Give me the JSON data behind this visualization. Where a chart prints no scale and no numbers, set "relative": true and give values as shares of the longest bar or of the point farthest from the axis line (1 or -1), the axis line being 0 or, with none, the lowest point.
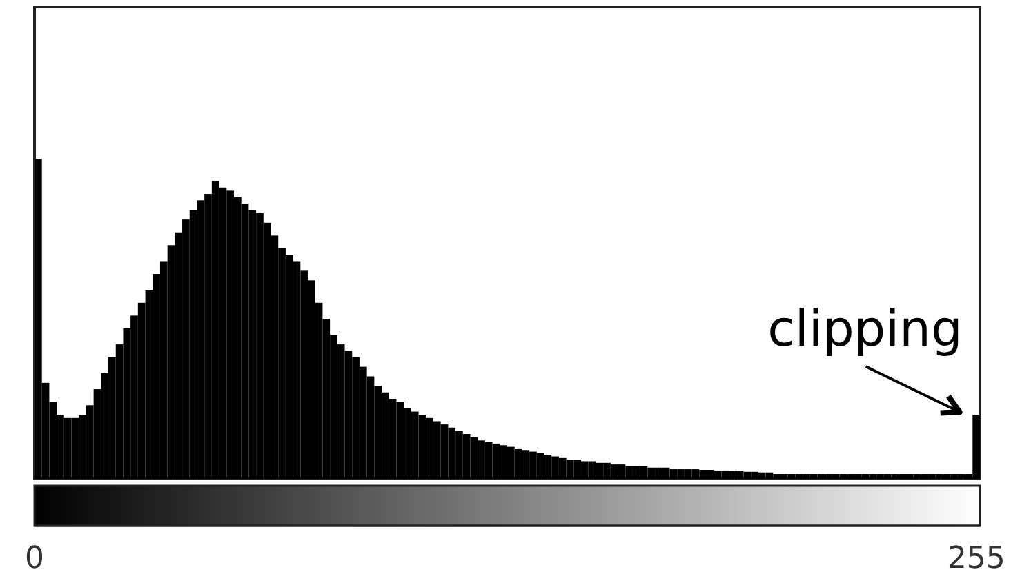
{
  "chart_data": {
    "type": "bar",
    "relative": true,
    "color": "#000000",
    "x": [
      1,
      3,
      5,
      7,
      9,
      11,
      13,
      15,
      17,
      19,
      21,
      23,
      25,
      27,
      29,
      31,
      33,
      35,
      37,
      39,
      41,
      43,
      45,
      47,
      49,
      51,
      53,
      55,
      57,
      59,
      61,
      63,
      65,
      67,
      69,
      71,
      73,
      75,
      77,
      79,
      81,
      83,
      85,
      87,
      89,
      91,
      93,
      95,
      97,
      99,
      101,
      103,
      105,
      107,
      109,
      111,
      113,
      115,
      117,
      119,
      121,
      123,
      125,
      127,
      129,
      131,
      133,
      135,
      137,
      139,
      141,
      143,
      145,
      147,
      149,
      151,
      153,
      155,
      157,
      159,
      161,
      163,
      165,
      167,
      169,
      171,
      173,
      175,
      177,
      179,
      181,
      183,
      185,
      187,
      189,
      191,
      193,
      195,
      197,
      199,
      201,
      203,
      205,
      207,
      209,
      211,
      213,
      215,
      217,
      219,
      221,
      223,
      225,
      227,
      229,
      231,
      233,
      235,
      237,
      239,
      241,
      243,
      245,
      247,
      249,
      251,
      253,
      255
    ],
    "values": [
      1,
      0.3,
      0.24,
      0.2,
      0.19,
      0.19,
      0.2,
      0.23,
      0.28,
      0.33,
      0.38,
      0.42,
      0.47,
      0.51,
      0.55,
      0.59,
      0.64,
      0.68,
      0.73,
      0.77,
      0.81,
      0.84,
      0.87,
      0.89,
      0.93,
      0.91,
      0.9,
      0.88,
      0.86,
      0.84,
      0.83,
      0.8,
      0.76,
      0.72,
      0.7,
      0.68,
      0.65,
      0.62,
      0.55,
      0.5,
      0.45,
      0.42,
      0.4,
      0.38,
      0.35,
      0.32,
      0.29,
      0.27,
      0.25,
      0.24,
      0.22,
      0.21,
      0.2,
      0.19,
      0.18,
      0.17,
      0.16,
      0.15,
      0.14,
      0.13,
      0.12,
      0.115,
      0.11,
      0.105,
      0.1,
      0.095,
      0.09,
      0.085,
      0.08,
      0.075,
      0.07,
      0.065,
      0.06,
      0.06,
      0.055,
      0.055,
      0.05,
      0.05,
      0.045,
      0.045,
      0.04,
      0.04,
      0.04,
      0.035,
      0.035,
      0.035,
      0.03,
      0.03,
      0.03,
      0.03,
      0.028,
      0.028,
      0.026,
      0.026,
      0.024,
      0.024,
      0.022,
      0.022,
      0.02,
      0.02,
      0.015,
      0.015,
      0.015,
      0.015,
      0.015,
      0.015,
      0.015,
      0.015,
      0.015,
      0.015,
      0.015,
      0.015,
      0.015,
      0.015,
      0.015,
      0.015,
      0.015,
      0.015,
      0.015,
      0.015,
      0.015,
      0.015,
      0.015,
      0.015,
      0.015,
      0.015,
      0.015,
      0.2
    ],
    "xlim": [
      0,
      256
    ],
    "xticks": [
      0,
      255
    ],
    "annotations": [
      {
        "text": "clipping",
        "x": 255,
        "y": 0.2
      }
    ]
  }
}
